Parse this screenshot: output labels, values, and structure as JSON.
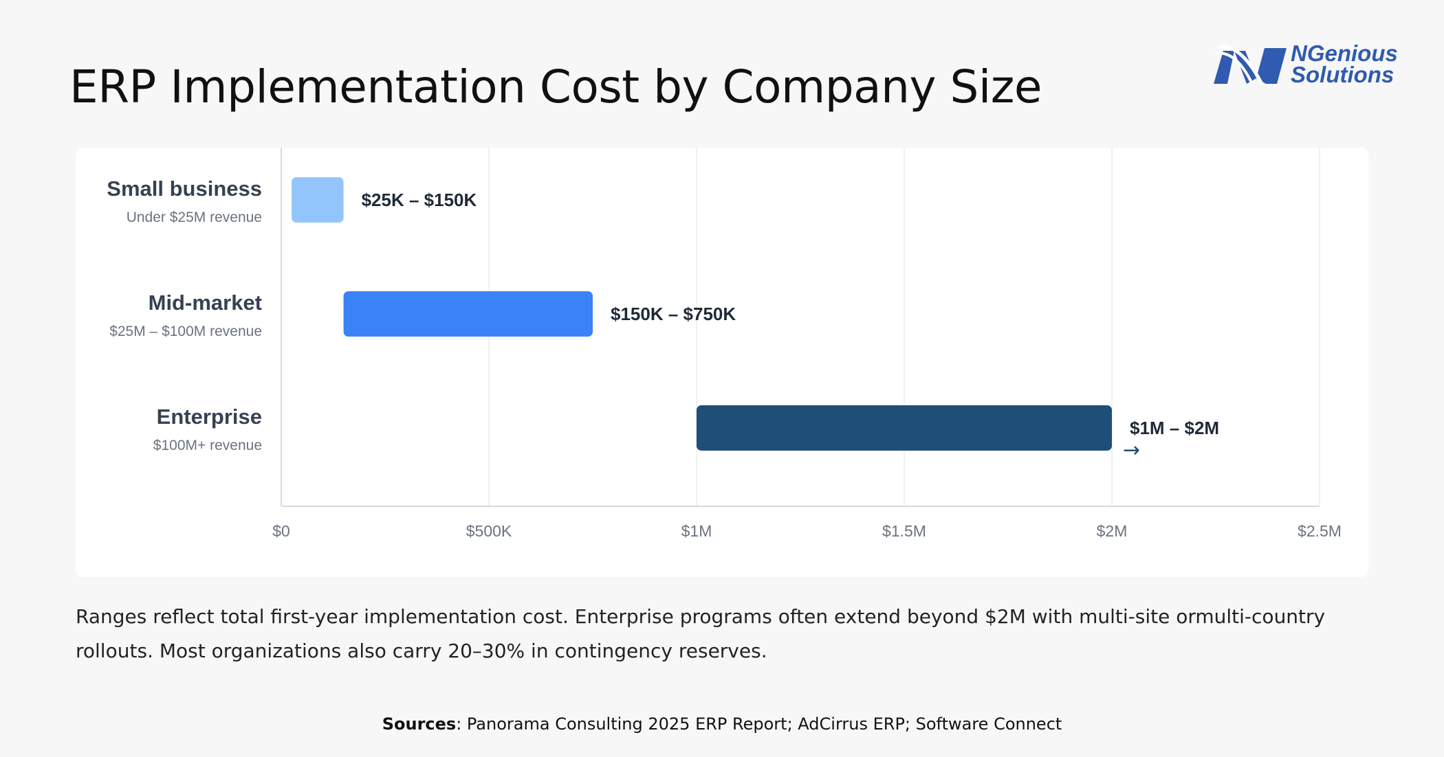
{
  "title": "ERP Implementation Cost by Company Size",
  "logo": {
    "line1": "NGenious",
    "line2": "Solutions",
    "color": "#2f5bb0"
  },
  "chart_data": {
    "type": "bar",
    "orientation": "horizontal-range",
    "xlim": [
      0,
      2500000
    ],
    "ticks": [
      {
        "value": 0,
        "label": "$0"
      },
      {
        "value": 500000,
        "label": "$500K"
      },
      {
        "value": 1000000,
        "label": "$1M"
      },
      {
        "value": 1500000,
        "label": "$1.5M"
      },
      {
        "value": 2000000,
        "label": "$2M"
      },
      {
        "value": 2500000,
        "label": "$2.5M"
      }
    ],
    "grid": true,
    "categories": [
      {
        "name": "Small business",
        "sub": "Under $25M revenue",
        "start": 25000,
        "end": 150000,
        "label": "$25K – $150K",
        "color": "#93c5fd",
        "arrow": false
      },
      {
        "name": "Mid-market",
        "sub": "$25M – $100M revenue",
        "start": 150000,
        "end": 750000,
        "label": "$150K – $750K",
        "color": "#3b82f6",
        "arrow": false
      },
      {
        "name": "Enterprise",
        "sub": "$100M+ revenue",
        "start": 1000000,
        "end": 2000000,
        "label": "$1M – $2M",
        "color": "#1f4e79",
        "arrow": true,
        "arrow_glyph": "→"
      }
    ]
  },
  "note": "Ranges reflect total first-year implementation cost. Enterprise programs often extend beyond $2M with multi-site ormulti-country rollouts. Most organizations also carry 20–30% in contingency reserves.",
  "sources": {
    "label": "Sources",
    "text": ": Panorama Consulting 2025 ERP Report; AdCirrus ERP; Software Connect"
  }
}
